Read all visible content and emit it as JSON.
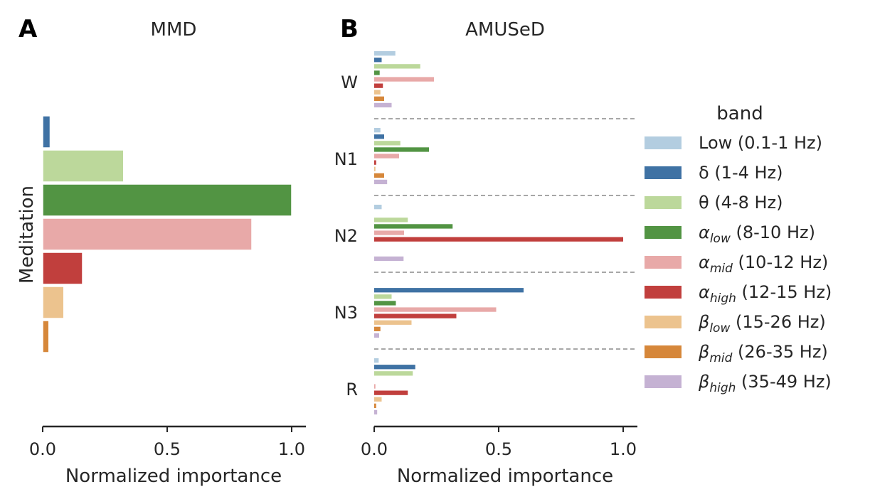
{
  "legend": {
    "title": "band",
    "entries": [
      {
        "label": "Low (0.1-1 Hz)",
        "color": "#b3cde0"
      },
      {
        "label": "δ (1-4 Hz)",
        "color": "#3f72a4"
      },
      {
        "label": "θ (4-8 Hz)",
        "color": "#bcd89b"
      },
      {
        "label": "α_low (8-10 Hz)",
        "color": "#529443"
      },
      {
        "label": "α_mid (10-12 Hz)",
        "color": "#e8a9a8"
      },
      {
        "label": "α_high (12-15 Hz)",
        "color": "#c13f3d"
      },
      {
        "label": "β_low (15-26 Hz)",
        "color": "#ecc38e"
      },
      {
        "label": "β_mid (26-35 Hz)",
        "color": "#d6873a"
      },
      {
        "label": "β_high (35-49 Hz)",
        "color": "#c5b2d3"
      }
    ]
  },
  "chart_data": [
    {
      "panel": "A",
      "type": "bar",
      "orientation": "horizontal",
      "title": "MMD",
      "xlabel": "Normalized importance",
      "ylabel": "Meditation",
      "xlim": [
        0,
        1.05
      ],
      "xticks": [
        "0.0",
        "0.5",
        "1.0"
      ],
      "categories": [
        ""
      ],
      "series": [
        {
          "name": "Low (0.1-1 Hz)",
          "values": [
            0.0
          ]
        },
        {
          "name": "δ (1-4 Hz)",
          "values": [
            0.03
          ]
        },
        {
          "name": "θ (4-8 Hz)",
          "values": [
            0.325
          ]
        },
        {
          "name": "α_low (8-10 Hz)",
          "values": [
            1.0
          ]
        },
        {
          "name": "α_mid (10-12 Hz)",
          "values": [
            0.84
          ]
        },
        {
          "name": "α_high (12-15 Hz)",
          "values": [
            0.16
          ]
        },
        {
          "name": "β_low (15-26 Hz)",
          "values": [
            0.085
          ]
        },
        {
          "name": "β_mid (26-35 Hz)",
          "values": [
            0.025
          ]
        },
        {
          "name": "β_high (35-49 Hz)",
          "values": [
            0.0
          ]
        }
      ],
      "grid": false
    },
    {
      "panel": "B",
      "type": "bar",
      "orientation": "horizontal",
      "title": "AMUSeD",
      "xlabel": "Normalized importance",
      "ylabel": "",
      "xlim": [
        0,
        1.05
      ],
      "xticks": [
        "0.0",
        "0.5",
        "1.0"
      ],
      "categories": [
        "W",
        "N1",
        "N2",
        "N3",
        "R"
      ],
      "series": [
        {
          "name": "Low (0.1-1 Hz)",
          "values": [
            0.085,
            0.025,
            0.03,
            0.0,
            0.018
          ]
        },
        {
          "name": "δ (1-4 Hz)",
          "values": [
            0.03,
            0.04,
            0.0,
            0.6,
            0.165
          ]
        },
        {
          "name": "θ (4-8 Hz)",
          "values": [
            0.185,
            0.105,
            0.135,
            0.07,
            0.155
          ]
        },
        {
          "name": "α_low (8-10 Hz)",
          "values": [
            0.022,
            0.22,
            0.315,
            0.087,
            0.0
          ]
        },
        {
          "name": "α_mid (10-12 Hz)",
          "values": [
            0.24,
            0.1,
            0.12,
            0.49,
            0.005
          ]
        },
        {
          "name": "α_high (12-15 Hz)",
          "values": [
            0.035,
            0.008,
            1.0,
            0.33,
            0.135
          ]
        },
        {
          "name": "β_low (15-26 Hz)",
          "values": [
            0.025,
            0.005,
            0.0,
            0.15,
            0.03
          ]
        },
        {
          "name": "β_mid (26-35 Hz)",
          "values": [
            0.04,
            0.04,
            0.0,
            0.025,
            0.008
          ]
        },
        {
          "name": "β_high (35-49 Hz)",
          "values": [
            0.07,
            0.052,
            0.118,
            0.02,
            0.012
          ]
        }
      ],
      "separators": "dashed",
      "grid": false
    }
  ]
}
